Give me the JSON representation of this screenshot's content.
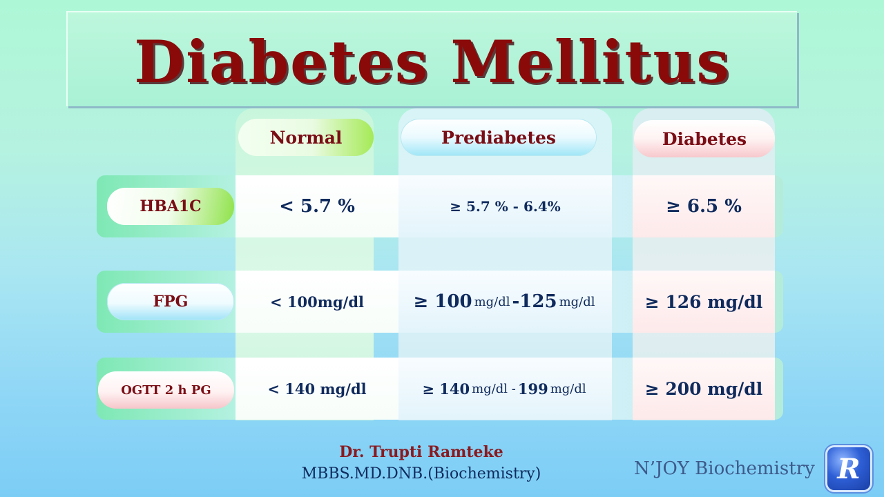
{
  "title": "Diabetes Mellitus",
  "columns": {
    "normal": "Normal",
    "prediabetes": "Prediabetes",
    "diabetes": "Diabetes"
  },
  "rows": {
    "hba1c": {
      "label": "HBA1C",
      "normal": "< 5.7 %",
      "prediabetes": "≥ 5.7 % -  6.4%",
      "diabetes": "≥ 6.5 %"
    },
    "fpg": {
      "label": "FPG",
      "normal": "< 100mg/dl",
      "pre_low": "≥ 100",
      "pre_unit1": "mg/dl",
      "pre_high": "-125",
      "pre_unit2": "mg/dl",
      "diabetes": "≥ 126 mg/dl"
    },
    "ogtt": {
      "label": "OGTT 2 h PG",
      "normal": "< 140 mg/dl",
      "pre_low": "≥ 140",
      "pre_unit1": "mg/dl -",
      "pre_high": "199",
      "pre_unit2": "mg/dl",
      "diabetes": "≥ 200 mg/dl"
    }
  },
  "footer": {
    "doctor": "Dr. Trupti Ramteke",
    "degrees": "MBBS.MD.DNB.(Biochemistry)",
    "channel": "N’JOY Biochemistry",
    "logo_letter": "R"
  }
}
